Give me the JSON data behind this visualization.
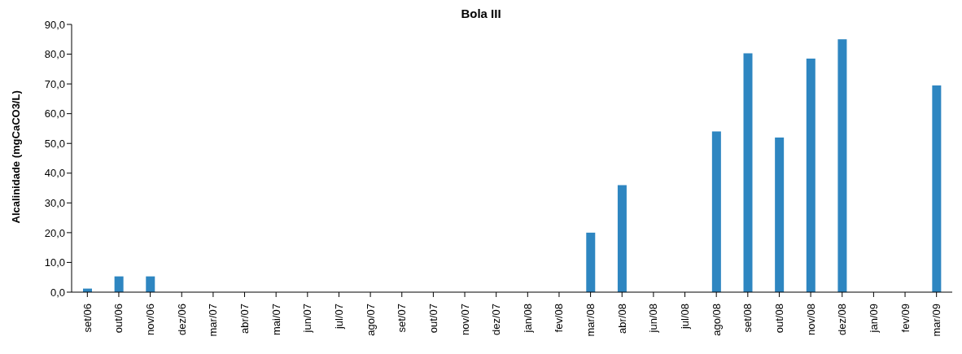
{
  "chart_data": {
    "type": "bar",
    "title": "Bola III",
    "ylabel": "Alcalinidade (mgCaCO3/L)",
    "categories": [
      "set/06",
      "out/06",
      "nov/06",
      "dez/06",
      "mar/07",
      "abr/07",
      "mai/07",
      "jun/07",
      "jul/07",
      "ago/07",
      "set/07",
      "out/07",
      "nov/07",
      "dez/07",
      "jan/08",
      "fev/08",
      "mar/08",
      "abr/08",
      "jun/08",
      "jul/08",
      "ago/08",
      "set/08",
      "out/08",
      "nov/08",
      "dez/08",
      "jan/09",
      "fev/09",
      "mar/09"
    ],
    "values": [
      1.2,
      5.3,
      5.3,
      null,
      null,
      null,
      null,
      null,
      null,
      null,
      null,
      null,
      null,
      null,
      null,
      null,
      20,
      36,
      null,
      null,
      54,
      80.3,
      52,
      78.5,
      85,
      null,
      null,
      69.5
    ],
    "color": "#2e86c1",
    "ylim": [
      0,
      90
    ],
    "yticks": [
      {
        "value": 0,
        "label": "0,0"
      },
      {
        "value": 10,
        "label": "10,0"
      },
      {
        "value": 20,
        "label": "20,0"
      },
      {
        "value": 30,
        "label": "30,0"
      },
      {
        "value": 40,
        "label": "40,0"
      },
      {
        "value": 50,
        "label": "50,0"
      },
      {
        "value": 60,
        "label": "60,0"
      },
      {
        "value": 70,
        "label": "70,0"
      },
      {
        "value": 80,
        "label": "80,0"
      },
      {
        "value": 90,
        "label": "90,0"
      }
    ],
    "grid": false,
    "legend": false
  }
}
